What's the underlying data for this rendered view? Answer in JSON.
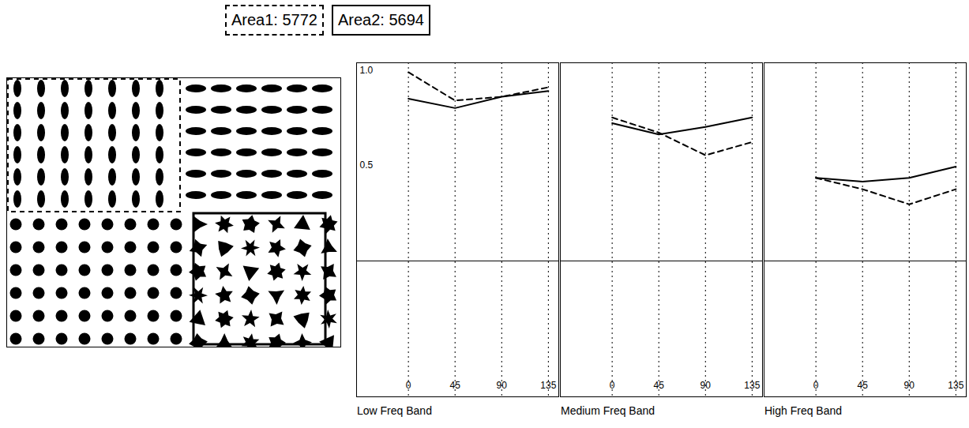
{
  "chart_data": [
    {
      "type": "line",
      "title": "Low Freq Band",
      "x": [
        0,
        45,
        90,
        135
      ],
      "series": [
        {
          "name": "Area1: 5772",
          "color": "#000000",
          "line_style": "dashed",
          "values": [
            1.0,
            0.85,
            0.87,
            0.92
          ]
        },
        {
          "name": "Area2: 5694",
          "color": "#000000",
          "line_style": "solid",
          "values": [
            0.86,
            0.81,
            0.87,
            0.9
          ]
        }
      ],
      "xlim": [
        -50,
        145
      ],
      "xticks": [
        0,
        45,
        90,
        135
      ],
      "ylim": [
        -0.72,
        1.05
      ],
      "yticks": [
        0.5,
        {
          "value": 1,
          "label": "1.0"
        }
      ],
      "grid": true,
      "legend": "top"
    },
    {
      "type": "line",
      "title": "Medium Freq Band",
      "x": [
        0,
        45,
        90,
        135
      ],
      "series": [
        {
          "name": "Area1: 5772",
          "color": "#000000",
          "line_style": "dashed",
          "values": [
            0.76,
            0.68,
            0.56,
            0.63
          ]
        },
        {
          "name": "Area2: 5694",
          "color": "#000000",
          "line_style": "solid",
          "values": [
            0.73,
            0.67,
            0.71,
            0.76
          ]
        }
      ],
      "xlim": [
        -50,
        145
      ],
      "xticks": [
        0,
        45,
        90,
        135
      ],
      "ylim": [
        -0.72,
        1.05
      ],
      "grid": true,
      "tick_labels": "x"
    },
    {
      "type": "line",
      "title": "High Freq Band",
      "x": [
        0,
        45,
        90,
        135
      ],
      "series": [
        {
          "name": "Area1: 5772",
          "color": "#000000",
          "line_style": "dashed",
          "values": [
            0.44,
            0.38,
            0.3,
            0.38
          ]
        },
        {
          "name": "Area2: 5694",
          "color": "#000000",
          "line_style": "solid",
          "values": [
            0.44,
            0.42,
            0.44,
            0.5
          ]
        }
      ],
      "xlim": [
        -50,
        145
      ],
      "xticks": [
        0,
        45,
        90,
        135
      ],
      "ylim": [
        -0.72,
        1.05
      ],
      "grid": true,
      "tick_labels": "x"
    }
  ]
}
